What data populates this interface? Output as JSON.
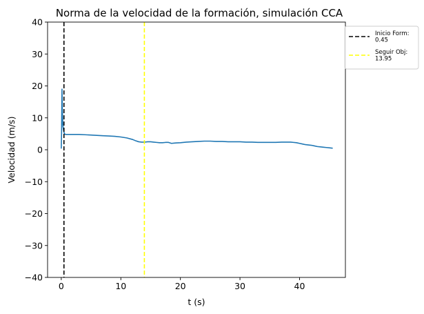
{
  "chart_data": {
    "type": "line",
    "title": "Norma de la velocidad de la formación, simulación CCA",
    "xlabel": "t (s)",
    "ylabel": "Velocidad (m/s)",
    "xlim": [
      -2.3,
      47.7
    ],
    "ylim": [
      -40,
      40
    ],
    "xticks": [
      0,
      10,
      20,
      30,
      40
    ],
    "yticks": [
      -40,
      -30,
      -20,
      -10,
      0,
      10,
      20,
      30,
      40
    ],
    "xtick_labels": [
      "0",
      "10",
      "20",
      "30",
      "40"
    ],
    "ytick_labels": [
      "−40",
      "−30",
      "−20",
      "−10",
      "0",
      "10",
      "20",
      "30",
      "40"
    ],
    "grid": false,
    "legend_position": "outside-top-right",
    "series": [
      {
        "color": "#1f77b4",
        "x": [
          0.0,
          0.05,
          0.1,
          0.12,
          0.14,
          0.18,
          0.25,
          0.35,
          0.45,
          0.55,
          0.7,
          1,
          2,
          3,
          4,
          5,
          6,
          7,
          8,
          9,
          10,
          11,
          12,
          12.5,
          13,
          13.5,
          14,
          14.5,
          15,
          15.5,
          16,
          16.5,
          17,
          17.5,
          18,
          18.5,
          19,
          20,
          21,
          22,
          23,
          24,
          25,
          26,
          27,
          28,
          29,
          30,
          31,
          32,
          33,
          34,
          35,
          36,
          37,
          38,
          38.5,
          39,
          39.5,
          40,
          40.5,
          41,
          41.5,
          42,
          42.5,
          43,
          43.5,
          44,
          44.5,
          45,
          45.5
        ],
        "y": [
          0.5,
          5,
          15,
          19,
          17,
          12,
          8,
          6.5,
          5.5,
          5.0,
          4.8,
          4.8,
          4.8,
          4.8,
          4.7,
          4.6,
          4.5,
          4.4,
          4.3,
          4.2,
          4.0,
          3.7,
          3.2,
          2.8,
          2.5,
          2.4,
          2.4,
          2.5,
          2.5,
          2.4,
          2.3,
          2.2,
          2.2,
          2.3,
          2.3,
          2.0,
          2.1,
          2.2,
          2.4,
          2.5,
          2.6,
          2.7,
          2.7,
          2.6,
          2.6,
          2.5,
          2.5,
          2.5,
          2.4,
          2.4,
          2.3,
          2.3,
          2.3,
          2.3,
          2.4,
          2.4,
          2.4,
          2.3,
          2.2,
          2.0,
          1.8,
          1.6,
          1.5,
          1.4,
          1.2,
          1.0,
          0.9,
          0.8,
          0.7,
          0.6,
          0.5
        ]
      }
    ],
    "vlines": [
      {
        "x": 0.45,
        "color": "#000000",
        "label": "Inicio Form:\n0.45",
        "label_lines": [
          "Inicio Form:",
          "0.45"
        ]
      },
      {
        "x": 13.95,
        "color": "#ffff00",
        "label": "Seguir Obj:\n13.95",
        "label_lines": [
          "Seguir Obj:",
          "13.95"
        ]
      }
    ]
  }
}
